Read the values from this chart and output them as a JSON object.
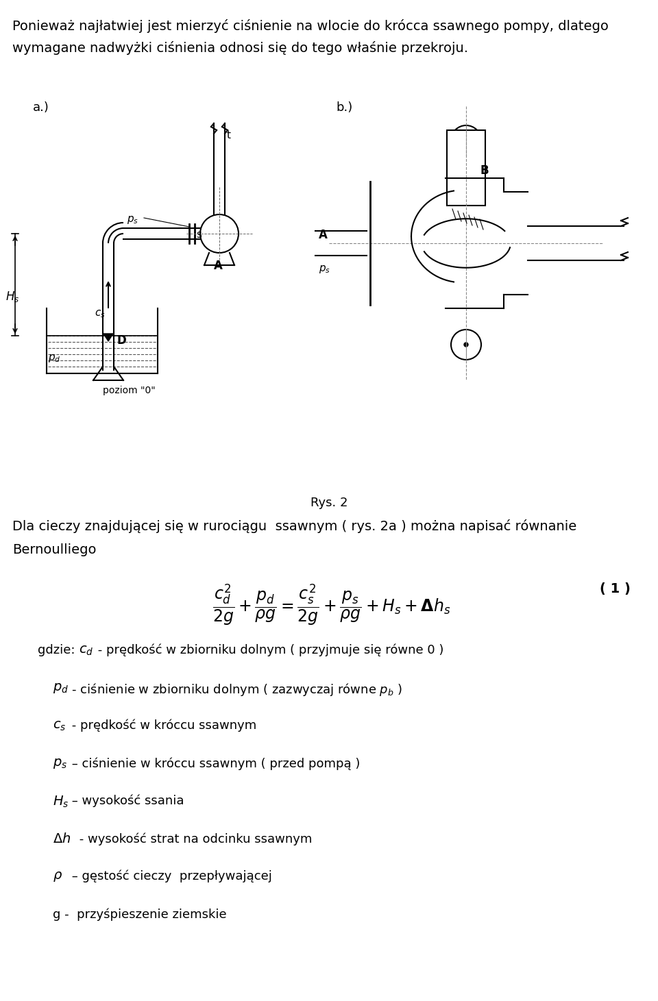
{
  "bg_color": "#ffffff",
  "figsize": [
    9.6,
    14.61
  ],
  "dpi": 100,
  "intro_text_1": "Ponieważ najłatwiej jest mierzyć ciśnienie na wlocie do krócca ssawnego pompy, dlatego",
  "intro_text_2": "wymagane nadwyżki ciśnienia odnosi się do tego właśnie przekroju.",
  "label_a": "a.)",
  "label_b": "b.)",
  "rys2_label": "Rys. 2",
  "body_text_1": "Dla cieczy znajdującej się w rurociągu  ssawnym ( rys. 2a ) można napisać równanie",
  "body_text_2": "Bernoulliego",
  "eq_number": "( 1 )",
  "gdzie_text": "gdzie:",
  "item1_symbol": "$c_d$",
  "item1_dash": " - ",
  "item1_text": "prędkość w zbiorniku dolnym ( przyjmuje się równe 0 )",
  "item2_symbol": "$p_d$",
  "item2_dash": " - ",
  "item2_text": "ciśnienie w zbiorniku dolnym ( zazwyczaj równe $p_b$ )",
  "item3_symbol": "$c_s$",
  "item3_dash": " - ",
  "item3_text": "prędkość w króccu ssawnym",
  "item4_symbol": "$p_s$",
  "item4_dash": " – ",
  "item4_text": "ciśnienie w króccu ssawnym ( przed pompą )",
  "item5_symbol": "$H_s$",
  "item5_dash": " – ",
  "item5_text": "wysokość ssania",
  "item6_symbol": "$\\Delta h$",
  "item6_dash": " - ",
  "item6_text": "wysokość strat na odcinku ssawnym",
  "item7_symbol": "$\\rho$",
  "item7_dash": " – ",
  "item7_text": "gęstość cieczy  przepływającej",
  "item8_text": "g -  przyśpieszenie ziemskie",
  "poziom": "poziom \"0\"",
  "label_A": "A",
  "label_B": "B",
  "label_D": "D",
  "label_t": "t",
  "label_s": "s",
  "label_ps_a": "$p_s$",
  "label_cs": "$c_s$",
  "label_pd": "$p_d$",
  "label_Hs": "$H_s$",
  "label_ps_b": "$p_s$"
}
